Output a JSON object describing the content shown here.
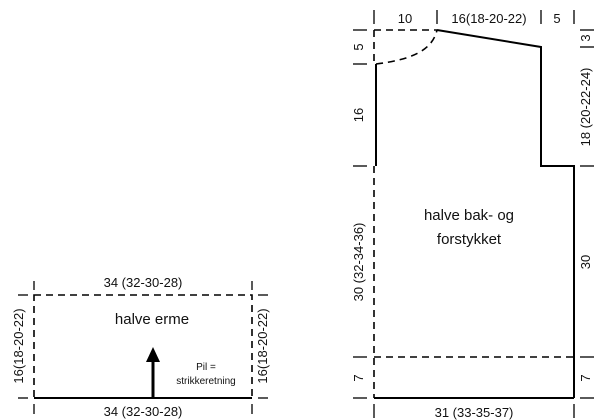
{
  "sleeve": {
    "title": "halve erme",
    "top_width": "34 (32-30-28)",
    "bottom_width": "34 (32-30-28)",
    "left_height": "16(18-20-22)",
    "right_height": "16(18-20-22)",
    "arrow_note_line1": "Pil =",
    "arrow_note_line2": "strikkeretning"
  },
  "body": {
    "title_line1": "halve bak- og",
    "title_line2": "forstykket",
    "top_neck": "10",
    "top_shoulder": "16(18-20-22)",
    "top_right": "5",
    "left_top": "5",
    "left_armhole": "16",
    "left_main": "30 (32-34-36)",
    "left_bottom": "7",
    "right_top": "3",
    "right_armhole": "18 (20-22-24)",
    "right_main": "30",
    "right_bottom": "7",
    "bottom_width": "31 (33-35-37)"
  }
}
